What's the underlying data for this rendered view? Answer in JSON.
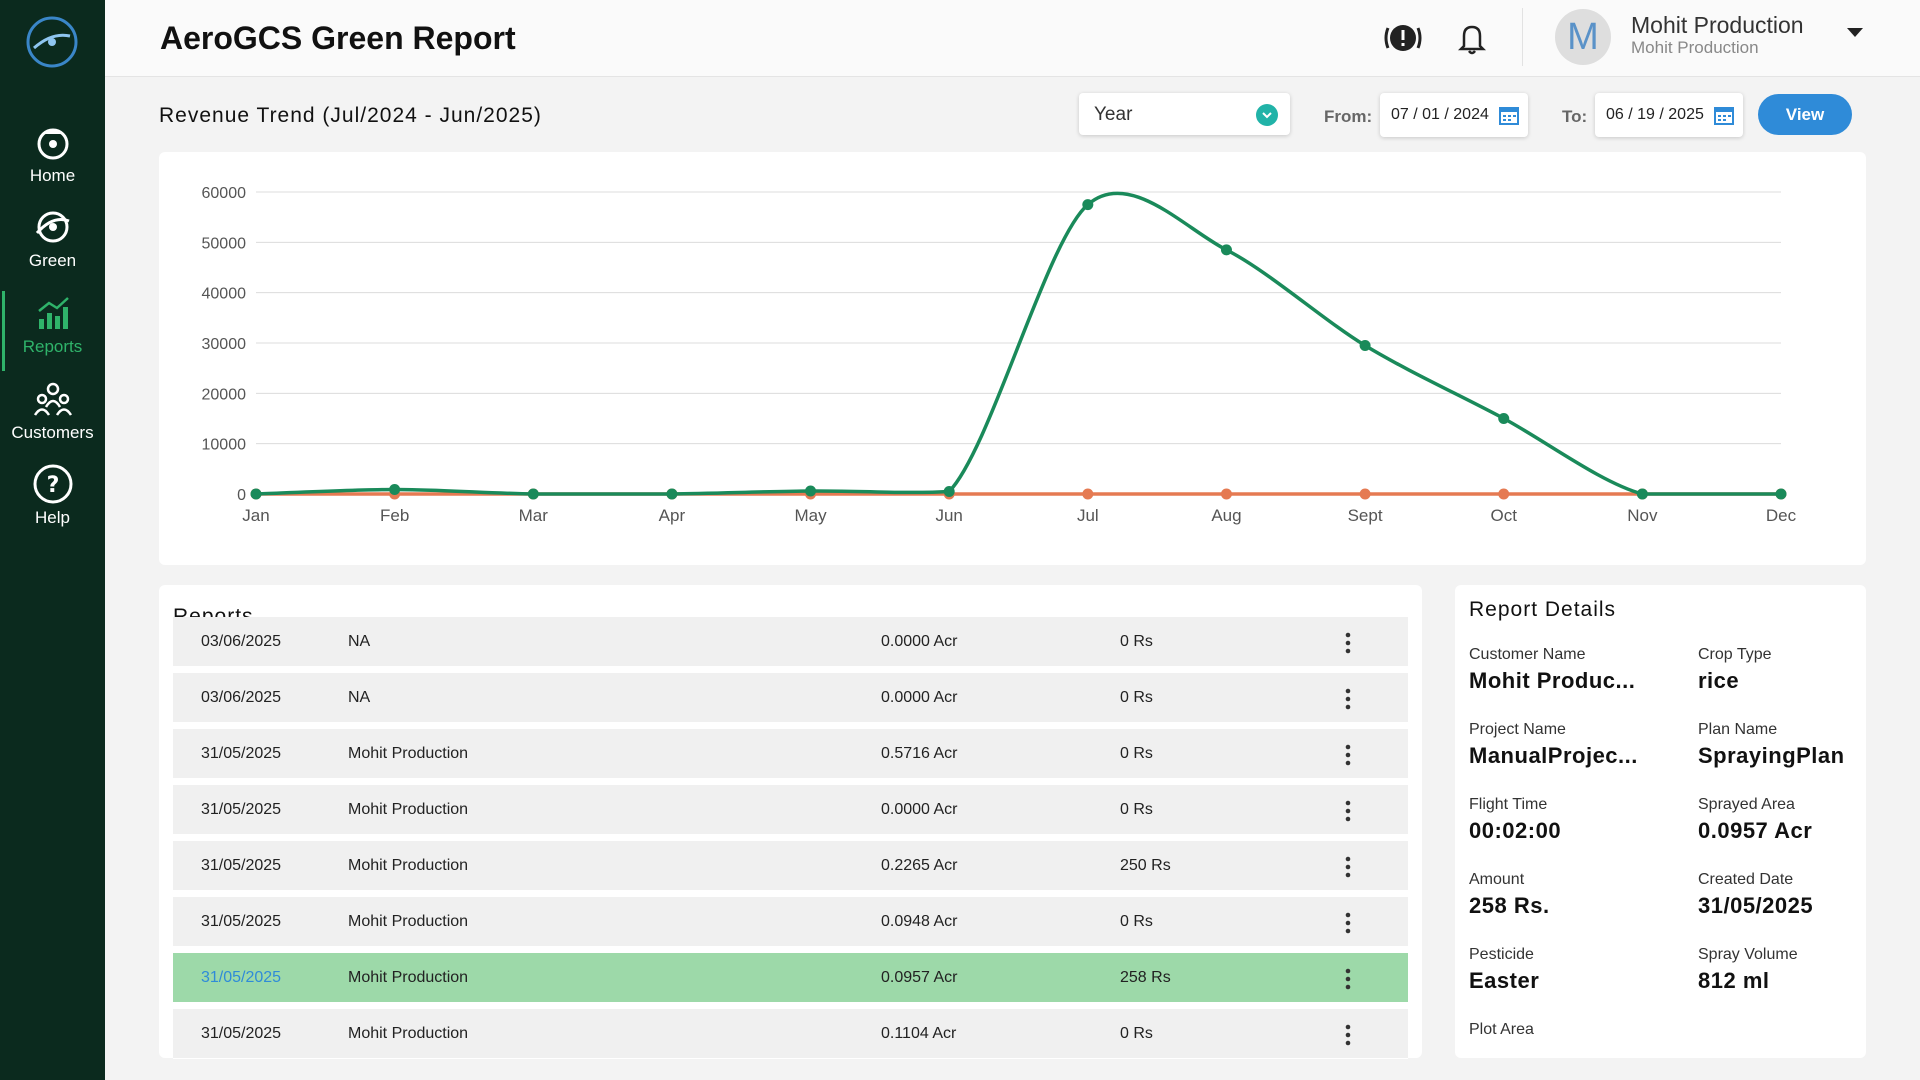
{
  "sidebar": {
    "items": [
      {
        "label": "Home",
        "icon": "home-icon"
      },
      {
        "label": "Green",
        "icon": "green-icon"
      },
      {
        "label": "Reports",
        "icon": "reports-icon",
        "active": true
      },
      {
        "label": "Customers",
        "icon": "customers-icon"
      },
      {
        "label": "Help",
        "icon": "help-icon"
      }
    ]
  },
  "header": {
    "title": "AeroGCS Green Report",
    "user": {
      "initial": "M",
      "name": "Mohit Production",
      "sub": "Mohit Production"
    }
  },
  "filters": {
    "chart_title": "Revenue Trend (Jul/2024 - Jun/2025)",
    "period": "Year",
    "from_label": "From:",
    "from_date": "07 / 01 / 2024",
    "to_label": "To:",
    "to_date": "06 / 19 / 2025",
    "view_label": "View"
  },
  "chart_data": {
    "type": "line",
    "categories": [
      "Jan",
      "Feb",
      "Mar",
      "Apr",
      "May",
      "Jun",
      "Jul",
      "Aug",
      "Sept",
      "Oct",
      "Nov",
      "Dec"
    ],
    "ylim": [
      0,
      60000
    ],
    "yticks": [
      "60000",
      "50000",
      "40000",
      "30000",
      "20000",
      "10000",
      "0"
    ],
    "grid": true,
    "series": [
      {
        "color": "#1a8a5a",
        "values": [
          0,
          900,
          0,
          0,
          600,
          500,
          57500,
          48500,
          29500,
          15000,
          0,
          0
        ]
      },
      {
        "color": "#e57a52",
        "values": [
          0,
          0,
          0,
          0,
          0,
          0,
          0,
          0,
          0,
          0,
          0,
          0
        ]
      }
    ]
  },
  "reports": {
    "title": "Reports",
    "rows": [
      {
        "date": "03/06/2025",
        "name": "NA",
        "area": "0.0000 Acr",
        "amount": "0 Rs"
      },
      {
        "date": "03/06/2025",
        "name": "NA",
        "area": "0.0000 Acr",
        "amount": "0 Rs"
      },
      {
        "date": "31/05/2025",
        "name": "Mohit Production",
        "area": "0.5716 Acr",
        "amount": "0 Rs"
      },
      {
        "date": "31/05/2025",
        "name": "Mohit Production",
        "area": "0.0000 Acr",
        "amount": "0 Rs"
      },
      {
        "date": "31/05/2025",
        "name": "Mohit Production",
        "area": "0.2265 Acr",
        "amount": "250 Rs"
      },
      {
        "date": "31/05/2025",
        "name": "Mohit Production",
        "area": "0.0948 Acr",
        "amount": "0 Rs"
      },
      {
        "date": "31/05/2025",
        "name": "Mohit Production",
        "area": "0.0957 Acr",
        "amount": "258 Rs",
        "selected": true
      },
      {
        "date": "31/05/2025",
        "name": "Mohit Production",
        "area": "0.1104 Acr",
        "amount": "0 Rs"
      }
    ]
  },
  "details": {
    "title": "Report Details",
    "fields": [
      {
        "label": "Customer Name",
        "value": "Mohit Produc..."
      },
      {
        "label": "Crop Type",
        "value": "rice"
      },
      {
        "label": "Project Name",
        "value": "ManualProjec..."
      },
      {
        "label": "Plan Name",
        "value": "SprayingPlan"
      },
      {
        "label": "Flight Time",
        "value": "00:02:00"
      },
      {
        "label": "Sprayed Area",
        "value": "0.0957 Acr"
      },
      {
        "label": "Amount",
        "value": "258 Rs."
      },
      {
        "label": "Created Date",
        "value": "31/05/2025"
      },
      {
        "label": "Pesticide",
        "value": "Easter"
      },
      {
        "label": "Spray Volume",
        "value": "812 ml"
      },
      {
        "label": "Plot Area",
        "value": ""
      }
    ]
  }
}
